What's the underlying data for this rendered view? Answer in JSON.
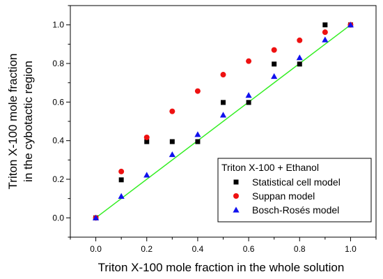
{
  "chart_data": {
    "type": "scatter",
    "xlabel": "Triton X-100 mole fraction in the whole solution",
    "ylabel_lines": [
      "Triton X-100 mole fraction",
      "in the cybotactic region"
    ],
    "xlim": [
      -0.1,
      1.1
    ],
    "ylim": [
      -0.1,
      1.1
    ],
    "xticks": [
      "0.0",
      "0.2",
      "0.4",
      "0.6",
      "0.8",
      "1.0"
    ],
    "yticks": [
      "0.0",
      "0.2",
      "0.4",
      "0.6",
      "0.8",
      "1.0"
    ],
    "legend_title": "Triton X-100 + Ethanol",
    "legend_position": "bottom-right",
    "reference_line": {
      "x": [
        0,
        1
      ],
      "y": [
        0,
        1
      ],
      "color": "#33ee22"
    },
    "series": [
      {
        "name": "Statistical cell model",
        "marker": "square",
        "color": "#000000",
        "x": [
          0.0,
          0.1,
          0.2,
          0.3,
          0.4,
          0.5,
          0.6,
          0.7,
          0.8,
          0.9,
          1.0
        ],
        "y": [
          0.0,
          0.197,
          0.395,
          0.395,
          0.395,
          0.598,
          0.598,
          0.797,
          0.797,
          1.0,
          1.0
        ]
      },
      {
        "name": "Suppan model",
        "marker": "circle",
        "color": "#ee1111",
        "x": [
          0.0,
          0.1,
          0.2,
          0.3,
          0.4,
          0.5,
          0.6,
          0.7,
          0.8,
          0.9,
          1.0
        ],
        "y": [
          0.0,
          0.24,
          0.417,
          0.552,
          0.657,
          0.742,
          0.812,
          0.87,
          0.92,
          0.962,
          1.0
        ]
      },
      {
        "name": "Bosch-Rosés model",
        "marker": "triangle",
        "color": "#1111ee",
        "x": [
          0.0,
          0.1,
          0.2,
          0.3,
          0.4,
          0.5,
          0.6,
          0.7,
          0.8,
          0.9,
          1.0
        ],
        "y": [
          0.0,
          0.112,
          0.222,
          0.328,
          0.432,
          0.533,
          0.635,
          0.733,
          0.83,
          0.923,
          1.0
        ]
      }
    ]
  }
}
